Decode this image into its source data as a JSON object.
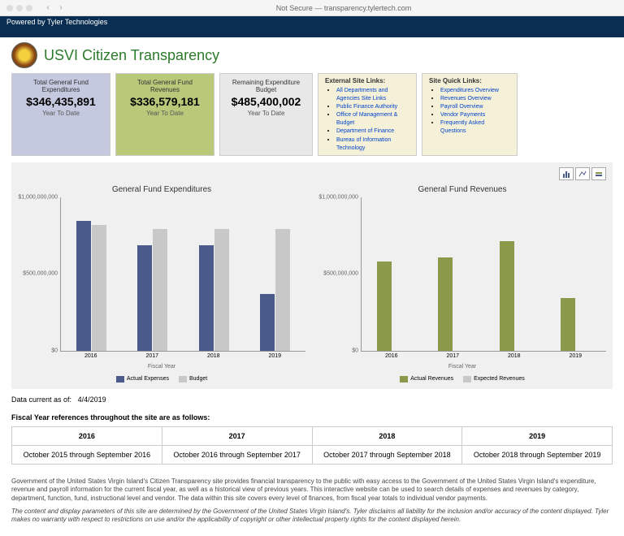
{
  "browser": {
    "url_text": "Not Secure — transparency.tylertech.com"
  },
  "powered_by": "Powered by Tyler Technologies",
  "page_title": "USVI Citizen Transparency",
  "cards": {
    "expenditures": {
      "label": "Total General Fund Expenditures",
      "value": "$346,435,891",
      "sub": "Year To Date"
    },
    "revenues": {
      "label": "Total General Fund Revenues",
      "value": "$336,579,181",
      "sub": "Year To Date"
    },
    "budget": {
      "label": "Remaining Expenditure Budget",
      "value": "$485,400,002",
      "sub": "Year To Date"
    }
  },
  "external_links": {
    "title": "External Site Links:",
    "items": [
      "All Departments and Agencies Site Links",
      "Public Finance Authority",
      "Office of Management & Budget",
      "Department of Finance",
      "Bureau of Information Technology"
    ]
  },
  "quick_links": {
    "title": "Site Quick Links:",
    "items": [
      "Expenditures Overview",
      "Revenues Overview",
      "Payroll Overview",
      "Vendor Payments",
      "Frequently Asked Questions"
    ]
  },
  "charts": {
    "expenditures": {
      "title": "General Fund Expenditures",
      "ylabels": [
        "$1,000,000,000",
        "$500,000,000",
        "$0"
      ],
      "xlabel": "Fiscal Year",
      "years": [
        "2016",
        "2017",
        "2018",
        "2019"
      ],
      "actual_color": "#4a5a8a",
      "budget_color": "#c8c8c8",
      "actual_heights": [
        160,
        130,
        130,
        70
      ],
      "budget_heights": [
        155,
        150,
        150,
        150
      ],
      "legend": [
        "Actual Expenses",
        "Budget"
      ]
    },
    "revenues": {
      "title": "General Fund Revenues",
      "ylabels": [
        "$1,000,000,000",
        "$500,000,000",
        "$0"
      ],
      "xlabel": "Fiscal Year",
      "years": [
        "2016",
        "2017",
        "2018",
        "2019"
      ],
      "actual_color": "#8a9a4a",
      "budget_color": "#c8c8c8",
      "actual_heights": [
        110,
        115,
        135,
        65
      ],
      "budget_heights": [
        0,
        0,
        0,
        0
      ],
      "legend": [
        "Actual Revenues",
        "Expected Revenues"
      ]
    }
  },
  "data_current_label": "Data current as of:",
  "data_current_date": "4/4/2019",
  "fy": {
    "title": "Fiscal Year references throughout the site are as follows:",
    "headers": [
      "2016",
      "2017",
      "2018",
      "2019"
    ],
    "ranges": [
      "October 2015 through September 2016",
      "October 2016 through September 2017",
      "October 2017 through September 2018",
      "October 2018 through September 2019"
    ]
  },
  "disclaimer": {
    "p1": "Government of the United States Virgin Island's Citizen Transparency site provides financial transparency to the public with easy access to the Government of the United States Virgin Island's expenditure, revenue and payroll information for the current fiscal year, as well as a historical view of previous years. This interactive website can be used to search details of expenses and revenues by category, department, function, fund, instructional level and vendor. The data within this site covers every level of finances, from fiscal year totals to individual vendor payments.",
    "p2": "The content and display parameters of this site are determined by the Government of the United States Virgin Island's. Tyler disclaims all liability for the inclusion and/or accuracy of the content displayed. Tyler makes no warranty with respect to restrictions on use and/or the applicability of copyright or other intellectual property rights for the content displayed herein."
  }
}
